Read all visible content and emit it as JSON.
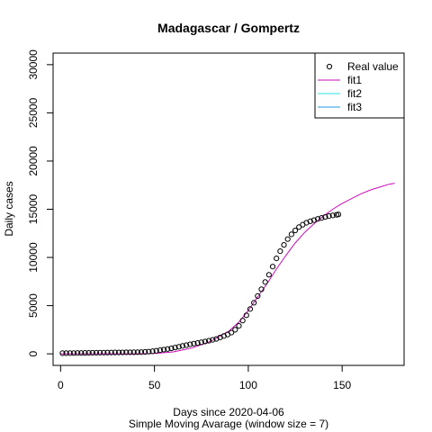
{
  "chart_data": {
    "type": "line",
    "title": "Madagascar / Gompertz",
    "xlabel": "Days since 2020-04-06",
    "xlabel2": "Simple Moving Avarage (window size = 7)",
    "ylabel": "Daily cases",
    "xlim": [
      -4,
      183
    ],
    "ylim": [
      -1200,
      31200
    ],
    "x_ticks": [
      0,
      50,
      100,
      150
    ],
    "y_ticks": [
      0,
      5000,
      10000,
      15000,
      20000,
      25000,
      30000
    ],
    "grid": false,
    "legend_position": "top-right",
    "legend": [
      "Real value",
      "fit1",
      "fit2",
      "fit3"
    ],
    "series": [
      {
        "name": "Real value",
        "style": "points",
        "color": "#000000",
        "x": [
          1,
          3,
          5,
          7,
          9,
          11,
          13,
          15,
          17,
          19,
          21,
          23,
          25,
          27,
          29,
          31,
          33,
          35,
          37,
          39,
          41,
          43,
          45,
          47,
          49,
          51,
          53,
          55,
          57,
          59,
          61,
          63,
          65,
          67,
          69,
          71,
          73,
          75,
          77,
          79,
          81,
          83,
          85,
          87,
          89,
          91,
          93,
          95,
          97,
          99,
          101,
          103,
          105,
          107,
          109,
          111,
          113,
          115,
          117,
          119,
          121,
          123,
          125,
          127,
          129,
          131,
          133,
          135,
          137,
          139,
          141,
          143,
          145,
          147,
          148
        ],
        "values": [
          70,
          70,
          75,
          80,
          85,
          90,
          95,
          100,
          110,
          115,
          120,
          125,
          130,
          135,
          140,
          145,
          150,
          155,
          160,
          165,
          170,
          180,
          200,
          230,
          270,
          320,
          380,
          440,
          500,
          570,
          650,
          730,
          820,
          900,
          990,
          1060,
          1120,
          1200,
          1280,
          1360,
          1450,
          1550,
          1700,
          1850,
          2000,
          2200,
          2500,
          2900,
          3450,
          4000,
          4650,
          5300,
          6000,
          6700,
          7450,
          8200,
          9050,
          9900,
          10650,
          11300,
          11900,
          12400,
          12800,
          13150,
          13400,
          13600,
          13750,
          13870,
          14000,
          14100,
          14200,
          14290,
          14360,
          14420,
          14460
        ]
      },
      {
        "name": "fit1",
        "style": "line",
        "color": "#CD0BBC",
        "x": [
          0,
          20,
          40,
          50,
          60,
          70,
          80,
          90,
          95,
          100,
          105,
          110,
          115,
          120,
          125,
          130,
          135,
          140,
          145,
          150,
          155,
          160,
          165,
          170,
          175,
          178
        ],
        "values": [
          0,
          0,
          5,
          40,
          200,
          600,
          1300,
          2400,
          3300,
          4500,
          5900,
          7300,
          8800,
          10200,
          11500,
          12600,
          13500,
          14300,
          15000,
          15600,
          16100,
          16600,
          17000,
          17300,
          17600,
          17700
        ]
      },
      {
        "name": "fit2",
        "style": "line",
        "color": "#28E2E5",
        "x": [],
        "values": []
      },
      {
        "name": "fit3",
        "style": "line",
        "color": "#2297E6",
        "x": [],
        "values": []
      }
    ]
  }
}
